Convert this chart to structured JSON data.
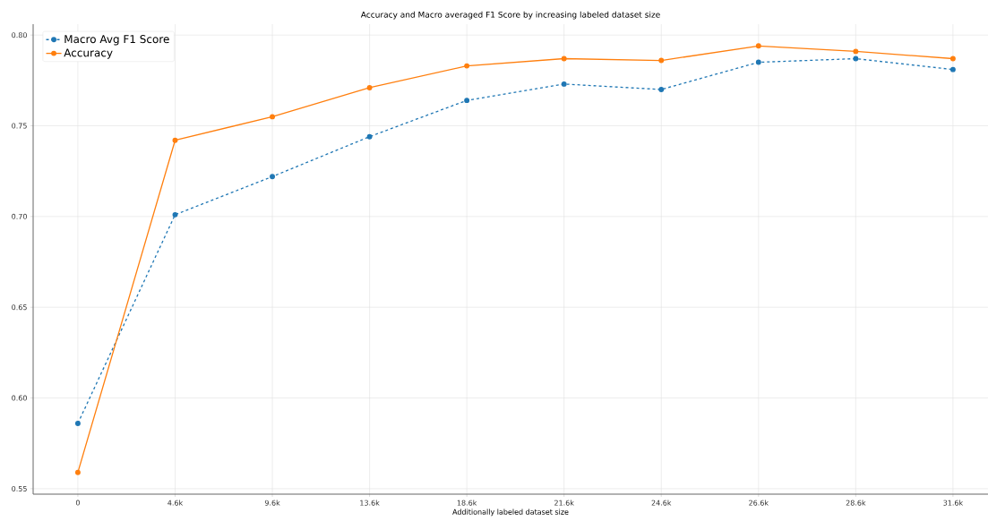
{
  "chart_data": {
    "type": "line",
    "title": "Accuracy and Macro averaged F1 Score by increasing labeled dataset size",
    "xlabel": "Additionally labeled dataset size",
    "categories": [
      "0",
      "4.6k",
      "9.6k",
      "13.6k",
      "18.6k",
      "21.6k",
      "24.6k",
      "26.6k",
      "28.6k",
      "31.6k"
    ],
    "series": [
      {
        "name": "Macro Avg F1 Score",
        "color": "#1f77b4",
        "line_style": "dashed",
        "values": [
          0.586,
          0.701,
          0.722,
          0.744,
          0.764,
          0.773,
          0.77,
          0.785,
          0.787,
          0.781
        ]
      },
      {
        "name": "Accuracy",
        "color": "#ff7f0e",
        "line_style": "solid",
        "values": [
          0.559,
          0.742,
          0.755,
          0.771,
          0.783,
          0.787,
          0.786,
          0.794,
          0.791,
          0.787
        ]
      }
    ],
    "ylim": [
      0.547,
      0.806
    ],
    "yticks": [
      0.55,
      {
        "value": 0.6,
        "label": "0.60"
      },
      0.65,
      {
        "value": 0.7,
        "label": "0.70"
      },
      0.75,
      {
        "value": 0.8,
        "label": "0.80"
      }
    ],
    "grid": true,
    "legend": "top left",
    "marker": "circle"
  }
}
